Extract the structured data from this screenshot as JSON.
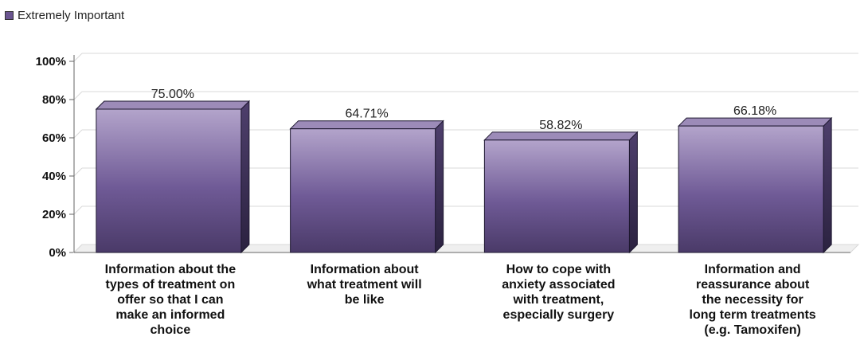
{
  "chart_data": {
    "type": "bar",
    "categories": [
      [
        "Information about the",
        "types of treatment on",
        "offer so that I can",
        "make an informed",
        "choice"
      ],
      [
        "Information about",
        "what treatment will",
        "be like"
      ],
      [
        "How to cope with",
        "anxiety associated",
        "with treatment,",
        "especially surgery"
      ],
      [
        "Information and",
        "reassurance about",
        "the necessity for",
        "long term treatments",
        "(e.g. Tamoxifen)"
      ]
    ],
    "series": [
      {
        "name": "Extremely Important",
        "values": [
          75.0,
          64.71,
          58.82,
          66.18
        ]
      }
    ],
    "value_labels": [
      "75.00%",
      "64.71%",
      "58.82%",
      "66.18%"
    ],
    "ylim": [
      0,
      100
    ],
    "yticks": [
      0,
      20,
      40,
      60,
      80,
      100
    ],
    "ytick_labels": [
      "0%",
      "20%",
      "40%",
      "60%",
      "80%",
      "100%"
    ],
    "grid": true,
    "legend": "top-left",
    "colors": {
      "bar": "#6a5590",
      "bar_light": "#b3a4cb",
      "bar_dark": "#3f3157",
      "grid": "#d8d8d8",
      "axis": "#666666"
    }
  }
}
